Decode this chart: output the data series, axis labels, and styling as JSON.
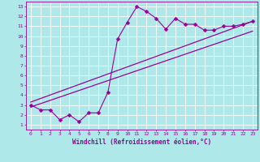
{
  "xlabel": "Windchill (Refroidissement éolien,°C)",
  "bg_color": "#aee8e8",
  "line_color": "#990099",
  "xlim": [
    -0.5,
    23.5
  ],
  "ylim": [
    0.5,
    13.5
  ],
  "xticks": [
    0,
    1,
    2,
    3,
    4,
    5,
    6,
    7,
    8,
    9,
    10,
    11,
    12,
    13,
    14,
    15,
    16,
    17,
    18,
    19,
    20,
    21,
    22,
    23
  ],
  "yticks": [
    1,
    2,
    3,
    4,
    5,
    6,
    7,
    8,
    9,
    10,
    11,
    12,
    13
  ],
  "data_x": [
    0,
    1,
    2,
    3,
    4,
    5,
    6,
    7,
    8,
    9,
    10,
    11,
    12,
    13,
    14,
    15,
    16,
    17,
    18,
    19,
    20,
    21,
    22,
    23
  ],
  "data_y": [
    3.0,
    2.5,
    2.5,
    1.5,
    2.0,
    1.3,
    2.2,
    2.2,
    4.3,
    9.7,
    11.4,
    13.0,
    12.5,
    11.8,
    10.7,
    11.8,
    11.2,
    11.2,
    10.6,
    10.6,
    11.0,
    11.0,
    11.2,
    11.5
  ],
  "line1_x": [
    0,
    23
  ],
  "line1_y": [
    2.8,
    10.5
  ],
  "line2_x": [
    0,
    23
  ],
  "line2_y": [
    3.3,
    11.5
  ],
  "grid_color": "#c8e8e8",
  "marker": "D",
  "markersize": 2.5
}
